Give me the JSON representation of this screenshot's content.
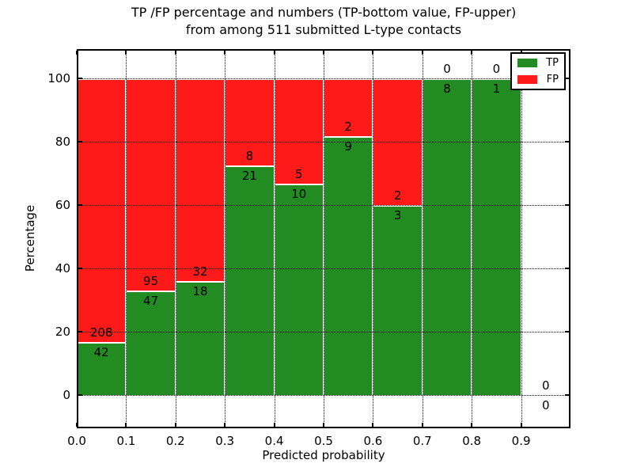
{
  "figure": {
    "title_line1": "TP /FP percentage and numbers (TP-bottom value, FP-upper)",
    "title_line2": "from among 511 submitted L-type contacts",
    "xlabel": "Predicted probability",
    "ylabel": "Percentage"
  },
  "legend": {
    "position": "upper right",
    "items": [
      {
        "label": "TP",
        "color": "#228b22"
      },
      {
        "label": "FP",
        "color": "#ff1a1a"
      }
    ]
  },
  "chart_data": {
    "type": "bar",
    "stacked": true,
    "title": "TP /FP percentage and numbers (TP-bottom value, FP-upper) from among 511 submitted L-type contacts",
    "xlabel": "Predicted probability",
    "ylabel": "Percentage",
    "grid": true,
    "legend_position": "upper right",
    "xlim": [
      0.0,
      1.0
    ],
    "ylim": [
      -11,
      109
    ],
    "bin_width": 0.1,
    "x_tick_labels": [
      "0.0",
      "0.1",
      "0.2",
      "0.3",
      "0.4",
      "0.5",
      "0.6",
      "0.7",
      "0.8",
      "0.9"
    ],
    "y_ticks": [
      0,
      20,
      40,
      60,
      80,
      100
    ],
    "series": [
      {
        "name": "TP",
        "color": "#228b22"
      },
      {
        "name": "FP",
        "color": "#ff1a1a"
      }
    ],
    "bins": [
      {
        "x_start": 0.0,
        "x_end": 0.1,
        "tp": 42,
        "fp": 208,
        "tp_pct": 16.8
      },
      {
        "x_start": 0.1,
        "x_end": 0.2,
        "tp": 47,
        "fp": 95,
        "tp_pct": 33.1
      },
      {
        "x_start": 0.2,
        "x_end": 0.3,
        "tp": 18,
        "fp": 32,
        "tp_pct": 36.0
      },
      {
        "x_start": 0.3,
        "x_end": 0.4,
        "tp": 21,
        "fp": 8,
        "tp_pct": 72.4
      },
      {
        "x_start": 0.4,
        "x_end": 0.5,
        "tp": 10,
        "fp": 5,
        "tp_pct": 66.7
      },
      {
        "x_start": 0.5,
        "x_end": 0.6,
        "tp": 9,
        "fp": 2,
        "tp_pct": 81.8
      },
      {
        "x_start": 0.6,
        "x_end": 0.7,
        "tp": 3,
        "fp": 2,
        "tp_pct": 60.0
      },
      {
        "x_start": 0.7,
        "x_end": 0.8,
        "tp": 8,
        "fp": 0,
        "tp_pct": 100.0
      },
      {
        "x_start": 0.8,
        "x_end": 0.9,
        "tp": 1,
        "fp": 0,
        "tp_pct": 100.0
      },
      {
        "x_start": 0.9,
        "x_end": 1.0,
        "tp": 0,
        "fp": 0,
        "tp_pct": 0.0
      }
    ],
    "total_contacts": 511
  }
}
